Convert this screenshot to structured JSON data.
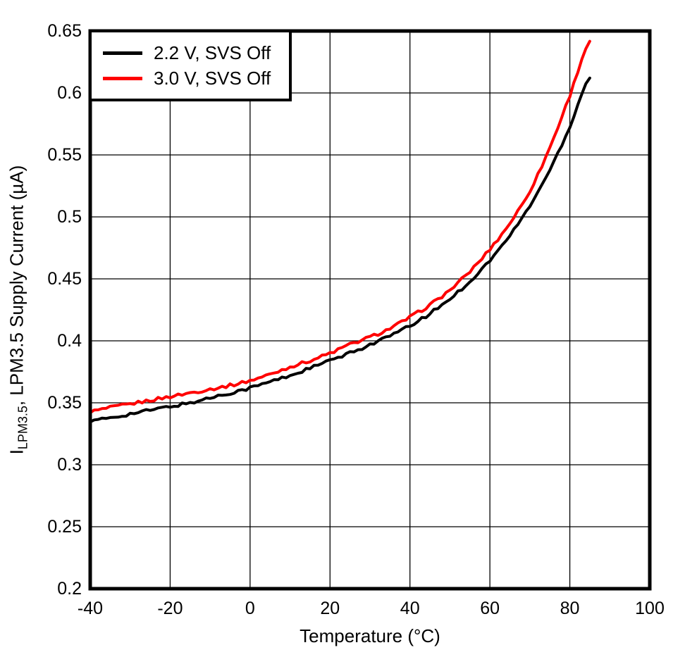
{
  "chart_data": {
    "type": "line",
    "title": "",
    "xlabel": "Temperature (°C)",
    "ylabel": "I_LPM3.5, LPM3.5 Supply Current (µA)",
    "ylabel_parts": {
      "prefix": "I",
      "sub": "LPM3.5",
      "rest": ", LPM3.5 Supply Current (µA)"
    },
    "xlim": [
      -40,
      100
    ],
    "ylim": [
      0.2,
      0.65
    ],
    "xticks": [
      -40,
      -20,
      0,
      20,
      40,
      60,
      80,
      100
    ],
    "xtick_labels": [
      "-40",
      "-20",
      "0",
      "20",
      "40",
      "60",
      "80",
      "100"
    ],
    "yticks": [
      0.2,
      0.25,
      0.3,
      0.35,
      0.4,
      0.45,
      0.5,
      0.55,
      0.6,
      0.65
    ],
    "ytick_labels": [
      "0.2",
      "0.25",
      "0.3",
      "0.35",
      "0.4",
      "0.45",
      "0.5",
      "0.55",
      "0.6",
      "0.65"
    ],
    "grid": true,
    "legend_position": "top-left",
    "background_color": "#ffffff",
    "axis_color": "#000000",
    "x": [
      -40,
      -35,
      -30,
      -25,
      -20,
      -15,
      -10,
      -5,
      0,
      5,
      10,
      15,
      20,
      25,
      30,
      35,
      40,
      45,
      50,
      55,
      60,
      65,
      70,
      75,
      80,
      85
    ],
    "series": [
      {
        "name": "2.2 V, SVS Off",
        "color": "#000000",
        "values": [
          0.335,
          0.338,
          0.341,
          0.344,
          0.347,
          0.35,
          0.354,
          0.358,
          0.362,
          0.367,
          0.372,
          0.378,
          0.384,
          0.39,
          0.397,
          0.404,
          0.412,
          0.422,
          0.434,
          0.448,
          0.465,
          0.485,
          0.509,
          0.538,
          0.573,
          0.613
        ]
      },
      {
        "name": "3.0 V, SVS Off",
        "color": "#ff0000",
        "values": [
          0.343,
          0.346,
          0.349,
          0.352,
          0.355,
          0.358,
          0.361,
          0.364,
          0.368,
          0.373,
          0.379,
          0.384,
          0.39,
          0.397,
          0.403,
          0.41,
          0.419,
          0.429,
          0.441,
          0.456,
          0.474,
          0.495,
          0.521,
          0.556,
          0.598,
          0.642
        ]
      }
    ]
  }
}
